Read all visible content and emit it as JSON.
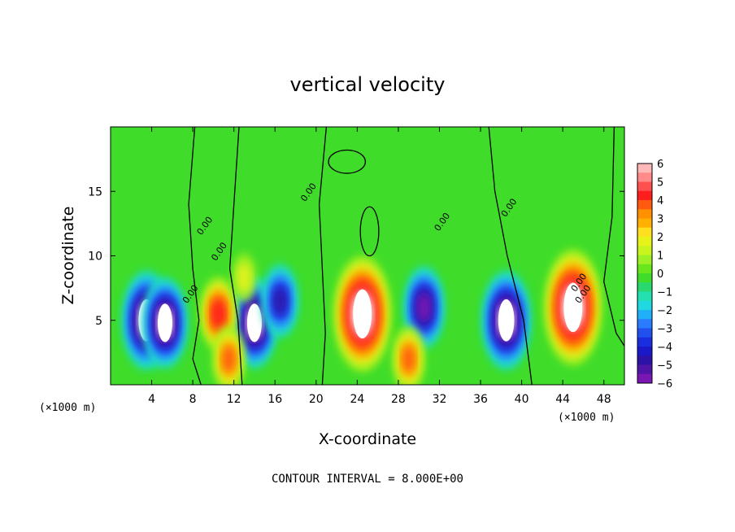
{
  "chart_data": {
    "type": "heatmap",
    "title": "vertical velocity",
    "xlabel": "X-coordinate",
    "ylabel": "Z-coordinate",
    "x_unit_left": "(×1000 m)",
    "x_unit_right": "(×1000 m)",
    "xlim": [
      0,
      50
    ],
    "ylim": [
      0,
      20
    ],
    "x_ticks": [
      4,
      8,
      12,
      16,
      20,
      24,
      28,
      32,
      36,
      40,
      44,
      48
    ],
    "y_ticks": [
      5,
      10,
      15
    ],
    "colorbar_ticks": [
      6,
      5,
      4,
      3,
      2,
      1,
      0,
      -1,
      -2,
      -3,
      -4,
      -5,
      -6
    ],
    "colorbar_range": [
      -6,
      6
    ],
    "contour_labels": [
      "0.00",
      "0.00",
      "0.00",
      "0.00",
      "0.00",
      "0.00",
      "0.00",
      "0.00"
    ],
    "footer": "CONTOUR INTERVAL = 8.000E+00",
    "features": [
      {
        "x": 3.5,
        "z": 5.0,
        "w": -8
      },
      {
        "x": 5.3,
        "z": 4.8,
        "w": -7
      },
      {
        "x": 14.0,
        "z": 4.8,
        "w": -7
      },
      {
        "x": 16.5,
        "z": 6.5,
        "w": -5
      },
      {
        "x": 30.5,
        "z": 6.0,
        "w": -6
      },
      {
        "x": 38.5,
        "z": 5.0,
        "w": -8
      },
      {
        "x": 10.5,
        "z": 5.5,
        "w": 5
      },
      {
        "x": 11.5,
        "z": 2.0,
        "w": 4
      },
      {
        "x": 24.5,
        "z": 5.5,
        "w": 10
      },
      {
        "x": 29.0,
        "z": 2.0,
        "w": 4
      },
      {
        "x": 45.0,
        "z": 6.0,
        "w": 10
      },
      {
        "x": 13.0,
        "z": 8.3,
        "w": 2
      }
    ]
  }
}
